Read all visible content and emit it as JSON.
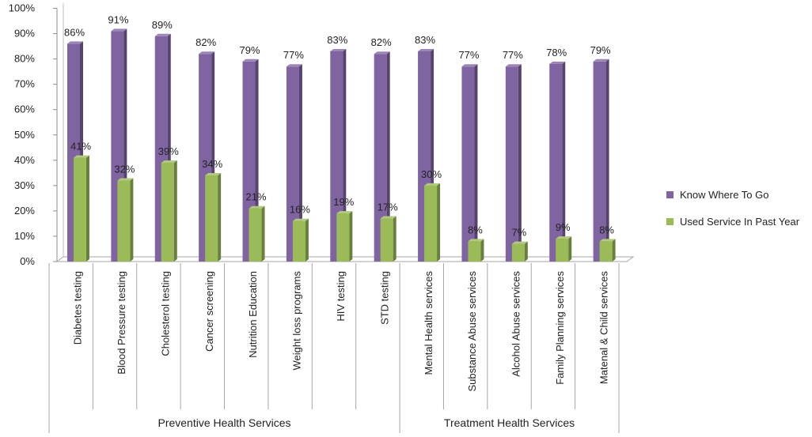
{
  "chart_data": {
    "type": "bar",
    "categories": [
      "Diabetes testing",
      "Blood Pressure  testing",
      "Cholesterol testing",
      "Cancer screening",
      "Nutrition Education",
      "Weight loss programs",
      "HIV testing",
      "STD testing",
      "Mental Health services",
      "Substance Abuse services",
      "Alcohol Abuse services",
      "Family Planning services",
      "Matenal & Child  services"
    ],
    "groups": [
      {
        "label": "Preventive Health Services",
        "start": 0,
        "end": 7
      },
      {
        "label": "Treatment Health Services",
        "start": 8,
        "end": 12
      }
    ],
    "series": [
      {
        "name": "Know Where To Go",
        "color": "#8064a2",
        "values": [
          86,
          91,
          89,
          82,
          79,
          77,
          83,
          82,
          83,
          77,
          77,
          78,
          79
        ],
        "labels": [
          "86%",
          "91%",
          "89%",
          "82%",
          "79%",
          "77%",
          "83%",
          "82%",
          "83%",
          "77%",
          "77%",
          "78%",
          "79%"
        ]
      },
      {
        "name": "Used Service In Past Year",
        "color": "#9bbb59",
        "values": [
          41,
          32,
          39,
          34,
          21,
          16,
          19,
          17,
          30,
          8,
          7,
          9,
          8
        ],
        "labels": [
          "41%",
          "32%",
          "39%",
          "34%",
          "21%",
          "16%",
          "19%",
          "17%",
          "30%",
          "8%",
          "7%",
          "9%",
          "8%"
        ]
      }
    ],
    "y_ticks": [
      "0%",
      "10%",
      "20%",
      "30%",
      "40%",
      "50%",
      "60%",
      "70%",
      "80%",
      "90%",
      "100%"
    ],
    "ylim": [
      0,
      100
    ],
    "legend_position": "right",
    "grid": false,
    "three_d": true
  }
}
